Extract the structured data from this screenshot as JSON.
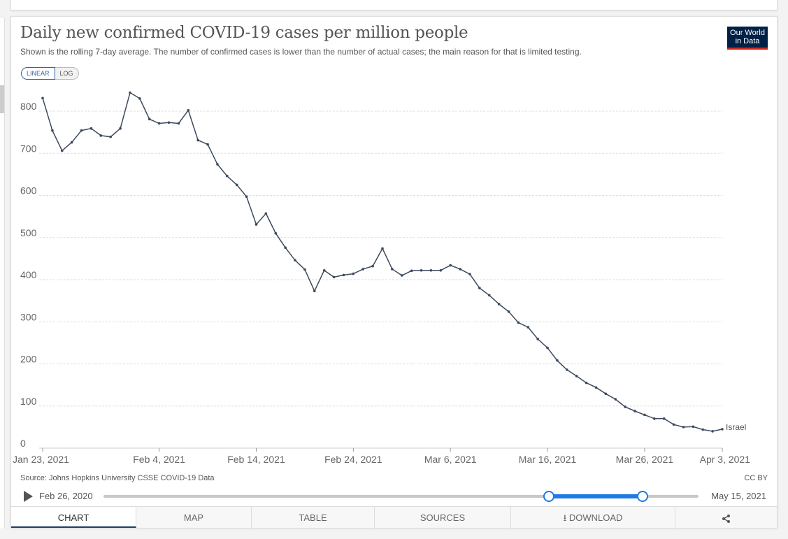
{
  "title": "Daily new confirmed COVID-19 cases per million people",
  "subtitle": "Shown is the rolling 7-day average. The number of confirmed cases is lower than the number of actual cases; the main reason for that is limited testing.",
  "logo": {
    "line1": "Our World",
    "line2": "in Data"
  },
  "scale_toggle": {
    "linear": "LINEAR",
    "log": "LOG",
    "selected": "LINEAR"
  },
  "source": "Source: Johns Hopkins University CSSE COVID-19 Data",
  "license": "CC BY",
  "timeline": {
    "start_label": "Feb 26, 2020",
    "end_label": "May 15, 2021"
  },
  "tabs": [
    "CHART",
    "MAP",
    "TABLE",
    "SOURCES",
    "DOWNLOAD",
    ""
  ],
  "active_tab": "CHART",
  "colors": {
    "line": "#3b4a5f",
    "accent": "#1e7ae6",
    "logo_bg": "#002147",
    "logo_bar": "#ce261e"
  },
  "chart_data": {
    "type": "line",
    "title": "Daily new confirmed COVID-19 cases per million people",
    "xlabel": "",
    "ylabel": "",
    "ylim": [
      0,
      800
    ],
    "yticks": [
      0,
      100,
      200,
      300,
      400,
      500,
      600,
      700,
      800
    ],
    "xlim": [
      "Jan 23, 2021",
      "Apr 3, 2021"
    ],
    "xtick_labels": [
      "Jan 23, 2021",
      "Feb 4, 2021",
      "Feb 14, 2021",
      "Feb 24, 2021",
      "Mar 6, 2021",
      "Mar 16, 2021",
      "Mar 26, 2021",
      "Apr 3, 2021"
    ],
    "xtick_day_offsets": [
      0,
      12,
      22,
      32,
      42,
      52,
      62,
      70
    ],
    "grid": true,
    "series": [
      {
        "name": "Israel",
        "start_date": "Jan 23, 2021",
        "values": [
          831,
          754,
          706,
          726,
          754,
          759,
          742,
          739,
          759,
          844,
          830,
          781,
          771,
          773,
          771,
          802,
          731,
          721,
          674,
          646,
          625,
          597,
          531,
          557,
          510,
          476,
          446,
          424,
          373,
          422,
          406,
          411,
          414,
          425,
          432,
          474,
          425,
          410,
          421,
          422,
          422,
          422,
          434,
          425,
          413,
          380,
          363,
          342,
          324,
          298,
          287,
          259,
          238,
          208,
          186,
          171,
          155,
          144,
          129,
          116,
          98,
          88,
          79,
          70,
          70,
          56,
          50,
          51,
          44,
          40,
          45
        ]
      }
    ]
  }
}
